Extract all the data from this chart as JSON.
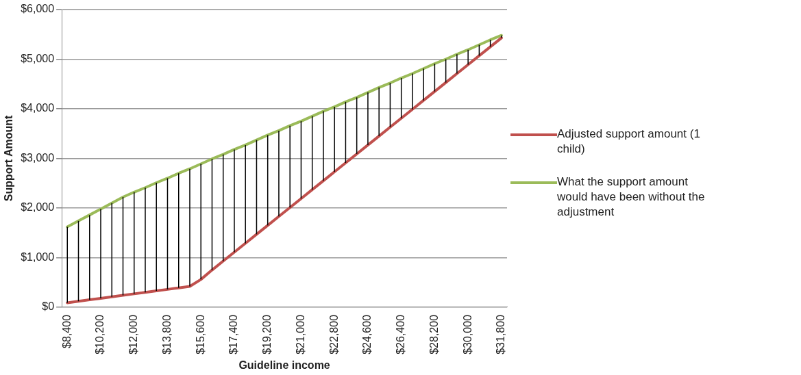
{
  "chart_data": {
    "type": "line",
    "xlabel": "Guideline income",
    "ylabel": "Support Amount",
    "categories": [
      "$8,400",
      null,
      null,
      "$10,200",
      null,
      null,
      "$12,000",
      null,
      null,
      "$13,800",
      null,
      null,
      "$15,600",
      null,
      null,
      "$17,400",
      null,
      null,
      "$19,200",
      null,
      null,
      "$21,000",
      null,
      null,
      "$22,800",
      null,
      null,
      "$24,600",
      null,
      null,
      "$26,400",
      null,
      null,
      "$28,200",
      null,
      null,
      "$30,000",
      null,
      null,
      "$31,800"
    ],
    "series": [
      {
        "name": "Adjusted support amount (1 child)",
        "color": "#c0504d",
        "values": [
          90,
          120,
          150,
          180,
          210,
          240,
          270,
          300,
          330,
          360,
          390,
          420,
          560,
          750,
          930,
          1110,
          1290,
          1470,
          1650,
          1830,
          2010,
          2190,
          2370,
          2550,
          2730,
          2910,
          3090,
          3270,
          3450,
          3630,
          3810,
          3990,
          4170,
          4350,
          4530,
          4710,
          4890,
          5070,
          5250,
          5430
        ],
        "errors": [
          [
            90,
            1620
          ],
          [
            120,
            1740
          ],
          [
            150,
            1860
          ],
          [
            180,
            1980
          ],
          [
            210,
            2100
          ],
          [
            240,
            2220
          ],
          [
            270,
            2320
          ],
          [
            300,
            2410
          ],
          [
            330,
            2510
          ],
          [
            360,
            2600
          ],
          [
            390,
            2700
          ],
          [
            420,
            2790
          ],
          [
            560,
            2890
          ],
          [
            750,
            2990
          ],
          [
            930,
            3080
          ],
          [
            1110,
            3180
          ],
          [
            1290,
            3270
          ],
          [
            1470,
            3370
          ],
          [
            1650,
            3470
          ],
          [
            1830,
            3560
          ],
          [
            2010,
            3660
          ],
          [
            2190,
            3750
          ],
          [
            2370,
            3850
          ],
          [
            2550,
            3950
          ],
          [
            2730,
            4040
          ],
          [
            2910,
            4140
          ],
          [
            3090,
            4230
          ],
          [
            3270,
            4330
          ],
          [
            3450,
            4430
          ],
          [
            3630,
            4520
          ],
          [
            3810,
            4620
          ],
          [
            3990,
            4710
          ],
          [
            4170,
            4810
          ],
          [
            4350,
            4910
          ],
          [
            4530,
            5000
          ],
          [
            4710,
            5100
          ],
          [
            4890,
            5190
          ],
          [
            5070,
            5290
          ],
          [
            5250,
            5390
          ],
          [
            5430,
            5480
          ]
        ]
      },
      {
        "name": "What the support amount would have been without the adjustment",
        "color": "#9bbb59",
        "values": [
          1620,
          1740,
          1860,
          1980,
          2100,
          2220,
          2320,
          2410,
          2510,
          2600,
          2700,
          2790,
          2890,
          2990,
          3080,
          3180,
          3270,
          3370,
          3470,
          3560,
          3660,
          3750,
          3850,
          3950,
          4040,
          4140,
          4230,
          4330,
          4430,
          4520,
          4620,
          4710,
          4810,
          4910,
          5000,
          5100,
          5190,
          5290,
          5390,
          5480
        ]
      }
    ],
    "ylim": [
      0,
      6000
    ],
    "yticks": [
      {
        "value": 0,
        "label": "$0"
      },
      {
        "value": 1000,
        "label": "$1,000"
      },
      {
        "value": 2000,
        "label": "$2,000"
      },
      {
        "value": 3000,
        "label": "$3,000"
      },
      {
        "value": 4000,
        "label": "$4,000"
      },
      {
        "value": 5000,
        "label": "$5,000"
      },
      {
        "value": 6000,
        "label": "$6,000"
      }
    ],
    "grid": "y",
    "legend": "right",
    "marker": "none",
    "line_style": "solid"
  }
}
